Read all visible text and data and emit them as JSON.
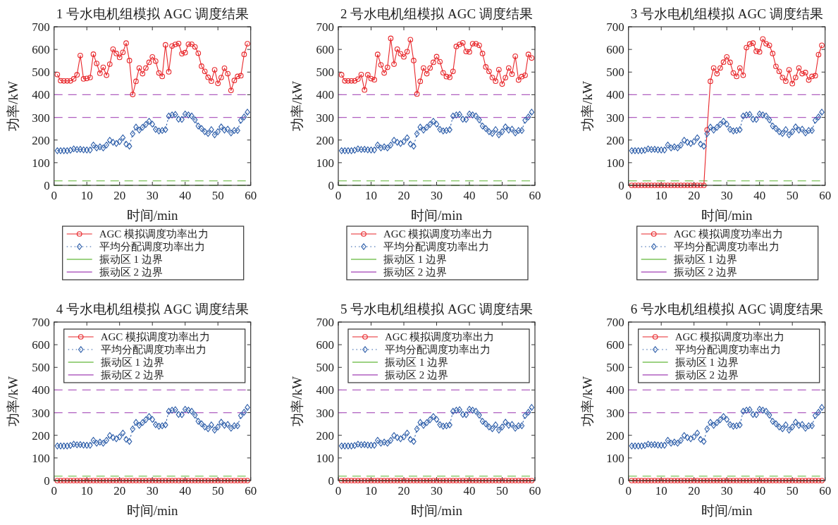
{
  "chart_data": [
    {
      "type": "line",
      "title": "1 号水电机组模拟 AGC 调度结果",
      "xlabel": "时间/min",
      "ylabel": "功率/kW",
      "xlim": [
        0,
        60
      ],
      "xticks": [
        0,
        10,
        20,
        30,
        40,
        50,
        60
      ],
      "ylim": [
        0,
        700
      ],
      "yticks": [
        0,
        100,
        200,
        300,
        400,
        500,
        600,
        700
      ],
      "legend": "bottom",
      "x": [
        1,
        2,
        3,
        4,
        5,
        6,
        7,
        8,
        9,
        10,
        11,
        12,
        13,
        14,
        15,
        16,
        17,
        18,
        19,
        20,
        21,
        22,
        23,
        24,
        25,
        26,
        27,
        28,
        29,
        30,
        31,
        32,
        33,
        34,
        35,
        36,
        37,
        38,
        39,
        40,
        41,
        42,
        43,
        44,
        45,
        46,
        47,
        48,
        49,
        50,
        51,
        52,
        53,
        54,
        55,
        56,
        57,
        58,
        59
      ],
      "series": [
        {
          "name": "AGC 模拟调度功率出力",
          "color": "#e8262a",
          "marker": "circle",
          "line_style": "solid",
          "values": [
            489,
            462,
            461,
            461,
            461,
            470,
            488,
            573,
            470,
            472,
            476,
            579,
            538,
            495,
            521,
            486,
            535,
            601,
            582,
            565,
            587,
            628,
            551,
            401,
            459,
            518,
            493,
            518,
            543,
            567,
            548,
            496,
            481,
            620,
            501,
            615,
            622,
            626,
            581,
            586,
            623,
            623,
            611,
            583,
            526,
            503,
            477,
            460,
            510,
            450,
            476,
            517,
            493,
            419,
            463,
            481,
            484,
            578,
            625
          ]
        },
        {
          "name": "平均分配调度功率出力",
          "color": "#2b5ca8",
          "marker": "diamond",
          "line_style": "dotted",
          "values": [
            153,
            153,
            153,
            153,
            155,
            161,
            158,
            159,
            157,
            156,
            156,
            178,
            165,
            170,
            165,
            178,
            199,
            190,
            185,
            193,
            210,
            182,
            173,
            228,
            257,
            244,
            256,
            269,
            283,
            270,
            247,
            240,
            242,
            246,
            306,
            311,
            313,
            292,
            291,
            315,
            311,
            306,
            289,
            262,
            251,
            237,
            229,
            246,
            223,
            237,
            258,
            244,
            248,
            231,
            242,
            242,
            287,
            302,
            323
          ]
        }
      ],
      "ref_lines": [
        {
          "axis": "y",
          "value": 0,
          "color": "#7cc35a",
          "line_style": "dashed"
        },
        {
          "axis": "y",
          "value": 20,
          "label": "振动区 1 边界",
          "color": "#7cc35a",
          "line_style": "dashed"
        },
        {
          "axis": "y",
          "value": 300,
          "label": "振动区 2 边界",
          "color": "#b05fc0",
          "line_style": "dashed"
        },
        {
          "axis": "y",
          "value": 400,
          "color": "#b05fc0",
          "line_style": "dashed"
        }
      ]
    },
    {
      "type": "line",
      "title": "2 号水电机组模拟 AGC 调度结果",
      "xlabel": "时间/min",
      "ylabel": "功率/kW",
      "xlim": [
        0,
        60
      ],
      "xticks": [
        0,
        10,
        20,
        30,
        40,
        50,
        60
      ],
      "ylim": [
        0,
        700
      ],
      "yticks": [
        0,
        100,
        200,
        300,
        400,
        500,
        600,
        700
      ],
      "legend": "bottom",
      "x": [
        1,
        2,
        3,
        4,
        5,
        6,
        7,
        8,
        9,
        10,
        11,
        12,
        13,
        14,
        15,
        16,
        17,
        18,
        19,
        20,
        21,
        22,
        23,
        24,
        25,
        26,
        27,
        28,
        29,
        30,
        31,
        32,
        33,
        34,
        35,
        36,
        37,
        38,
        39,
        40,
        41,
        42,
        43,
        44,
        45,
        46,
        47,
        48,
        49,
        50,
        51,
        52,
        53,
        54,
        55,
        56,
        57,
        58,
        59
      ],
      "series": [
        {
          "name": "AGC 模拟调度功率出力",
          "color": "#e8262a",
          "marker": "circle",
          "line_style": "solid",
          "values": [
            488,
            461,
            461,
            461,
            461,
            469,
            489,
            421,
            488,
            471,
            466,
            578,
            532,
            496,
            521,
            649,
            535,
            601,
            581,
            567,
            590,
            643,
            551,
            403,
            459,
            518,
            493,
            518,
            543,
            568,
            546,
            497,
            480,
            477,
            503,
            613,
            622,
            629,
            591,
            589,
            625,
            625,
            618,
            582,
            523,
            503,
            476,
            460,
            511,
            447,
            475,
            518,
            491,
            570,
            465,
            480,
            486,
            578,
            562
          ]
        },
        {
          "name": "平均分配调度功率出力",
          "color": "#2b5ca8",
          "marker": "diamond",
          "line_style": "dotted",
          "values": [
            153,
            153,
            153,
            153,
            155,
            161,
            158,
            159,
            157,
            156,
            156,
            178,
            165,
            170,
            165,
            178,
            199,
            190,
            185,
            193,
            210,
            182,
            173,
            228,
            257,
            244,
            256,
            269,
            283,
            270,
            247,
            240,
            242,
            246,
            306,
            311,
            313,
            292,
            291,
            315,
            311,
            306,
            289,
            262,
            251,
            237,
            229,
            246,
            223,
            237,
            258,
            244,
            248,
            231,
            242,
            242,
            287,
            302,
            323
          ]
        }
      ],
      "ref_lines": [
        {
          "axis": "y",
          "value": 0,
          "color": "#7cc35a",
          "line_style": "dashed"
        },
        {
          "axis": "y",
          "value": 20,
          "label": "振动区 1 边界",
          "color": "#7cc35a",
          "line_style": "dashed"
        },
        {
          "axis": "y",
          "value": 300,
          "label": "振动区 2 边界",
          "color": "#b05fc0",
          "line_style": "dashed"
        },
        {
          "axis": "y",
          "value": 400,
          "color": "#b05fc0",
          "line_style": "dashed"
        }
      ]
    },
    {
      "type": "line",
      "title": "3 号水电机组模拟 AGC 调度结果",
      "xlabel": "时间/min",
      "ylabel": "功率/kW",
      "xlim": [
        0,
        60
      ],
      "xticks": [
        0,
        10,
        20,
        30,
        40,
        50,
        60
      ],
      "ylim": [
        0,
        700
      ],
      "yticks": [
        0,
        100,
        200,
        300,
        400,
        500,
        600,
        700
      ],
      "legend": "bottom",
      "x": [
        1,
        2,
        3,
        4,
        5,
        6,
        7,
        8,
        9,
        10,
        11,
        12,
        13,
        14,
        15,
        16,
        17,
        18,
        19,
        20,
        21,
        22,
        23,
        24,
        25,
        26,
        27,
        28,
        29,
        30,
        31,
        32,
        33,
        34,
        35,
        36,
        37,
        38,
        39,
        40,
        41,
        42,
        43,
        44,
        45,
        46,
        47,
        48,
        49,
        50,
        51,
        52,
        53,
        54,
        55,
        56,
        57,
        58,
        59
      ],
      "series": [
        {
          "name": "AGC 模拟调度功率出力",
          "color": "#e8262a",
          "marker": "circle",
          "line_style": "solid",
          "values": [
            0,
            0,
            0,
            0,
            0,
            0,
            0,
            0,
            0,
            0,
            0,
            0,
            0,
            0,
            0,
            0,
            0,
            0,
            0,
            0,
            0,
            0,
            0,
            245,
            459,
            518,
            493,
            518,
            544,
            567,
            543,
            496,
            481,
            518,
            486,
            608,
            624,
            628,
            592,
            589,
            646,
            625,
            618,
            582,
            525,
            503,
            476,
            460,
            510,
            449,
            476,
            518,
            493,
            498,
            465,
            481,
            484,
            577,
            618
          ]
        },
        {
          "name": "平均分配调度功率出力",
          "color": "#2b5ca8",
          "marker": "diamond",
          "line_style": "dotted",
          "values": [
            153,
            153,
            153,
            153,
            155,
            161,
            158,
            159,
            157,
            156,
            156,
            178,
            165,
            170,
            165,
            178,
            199,
            190,
            185,
            193,
            210,
            182,
            173,
            228,
            257,
            244,
            256,
            269,
            283,
            270,
            247,
            240,
            242,
            246,
            306,
            311,
            313,
            292,
            291,
            315,
            311,
            306,
            289,
            262,
            251,
            237,
            229,
            246,
            223,
            237,
            258,
            244,
            248,
            231,
            242,
            242,
            287,
            302,
            323
          ]
        }
      ],
      "ref_lines": [
        {
          "axis": "y",
          "value": 0,
          "color": "#7cc35a",
          "line_style": "dashed"
        },
        {
          "axis": "y",
          "value": 20,
          "label": "振动区 1 边界",
          "color": "#7cc35a",
          "line_style": "dashed"
        },
        {
          "axis": "y",
          "value": 300,
          "label": "振动区 2 边界",
          "color": "#b05fc0",
          "line_style": "dashed"
        },
        {
          "axis": "y",
          "value": 400,
          "color": "#b05fc0",
          "line_style": "dashed"
        }
      ]
    },
    {
      "type": "line",
      "title": "4 号水电机组模拟 AGC 调度结果",
      "xlabel": "时间/min",
      "ylabel": "功率/kW",
      "xlim": [
        0,
        60
      ],
      "xticks": [
        0,
        10,
        20,
        30,
        40,
        50,
        60
      ],
      "ylim": [
        0,
        700
      ],
      "yticks": [
        0,
        100,
        200,
        300,
        400,
        500,
        600,
        700
      ],
      "legend": "top",
      "x": [
        1,
        2,
        3,
        4,
        5,
        6,
        7,
        8,
        9,
        10,
        11,
        12,
        13,
        14,
        15,
        16,
        17,
        18,
        19,
        20,
        21,
        22,
        23,
        24,
        25,
        26,
        27,
        28,
        29,
        30,
        31,
        32,
        33,
        34,
        35,
        36,
        37,
        38,
        39,
        40,
        41,
        42,
        43,
        44,
        45,
        46,
        47,
        48,
        49,
        50,
        51,
        52,
        53,
        54,
        55,
        56,
        57,
        58,
        59
      ],
      "series": [
        {
          "name": "AGC 模拟调度功率出力",
          "color": "#e8262a",
          "marker": "circle",
          "line_style": "solid",
          "values": [
            0,
            0,
            0,
            0,
            0,
            0,
            0,
            0,
            0,
            0,
            0,
            0,
            0,
            0,
            0,
            0,
            0,
            0,
            0,
            0,
            0,
            0,
            0,
            0,
            0,
            0,
            0,
            0,
            0,
            0,
            0,
            0,
            0,
            0,
            0,
            0,
            0,
            0,
            0,
            0,
            0,
            0,
            0,
            0,
            0,
            0,
            0,
            0,
            0,
            0,
            0,
            0,
            0,
            0,
            0,
            0,
            0,
            0,
            0
          ]
        },
        {
          "name": "平均分配调度功率出力",
          "color": "#2b5ca8",
          "marker": "diamond",
          "line_style": "dotted",
          "values": [
            153,
            153,
            153,
            153,
            155,
            161,
            158,
            159,
            157,
            156,
            156,
            178,
            165,
            170,
            165,
            178,
            199,
            190,
            185,
            193,
            210,
            182,
            173,
            228,
            257,
            244,
            256,
            269,
            283,
            270,
            247,
            240,
            242,
            246,
            306,
            311,
            313,
            292,
            291,
            315,
            311,
            306,
            289,
            262,
            251,
            237,
            229,
            246,
            223,
            237,
            258,
            244,
            248,
            231,
            242,
            242,
            287,
            302,
            323
          ]
        }
      ],
      "ref_lines": [
        {
          "axis": "y",
          "value": 0,
          "color": "#7cc35a",
          "line_style": "dashed"
        },
        {
          "axis": "y",
          "value": 20,
          "label": "振动区 1 边界",
          "color": "#7cc35a",
          "line_style": "dashed"
        },
        {
          "axis": "y",
          "value": 300,
          "label": "振动区 2 边界",
          "color": "#b05fc0",
          "line_style": "dashed"
        },
        {
          "axis": "y",
          "value": 400,
          "color": "#b05fc0",
          "line_style": "dashed"
        }
      ]
    },
    {
      "type": "line",
      "title": "5 号水电机组模拟 AGC 调度结果",
      "xlabel": "时间/min",
      "ylabel": "功率/kW",
      "xlim": [
        0,
        60
      ],
      "xticks": [
        0,
        10,
        20,
        30,
        40,
        50,
        60
      ],
      "ylim": [
        0,
        700
      ],
      "yticks": [
        0,
        100,
        200,
        300,
        400,
        500,
        600,
        700
      ],
      "legend": "top",
      "x": [
        1,
        2,
        3,
        4,
        5,
        6,
        7,
        8,
        9,
        10,
        11,
        12,
        13,
        14,
        15,
        16,
        17,
        18,
        19,
        20,
        21,
        22,
        23,
        24,
        25,
        26,
        27,
        28,
        29,
        30,
        31,
        32,
        33,
        34,
        35,
        36,
        37,
        38,
        39,
        40,
        41,
        42,
        43,
        44,
        45,
        46,
        47,
        48,
        49,
        50,
        51,
        52,
        53,
        54,
        55,
        56,
        57,
        58,
        59
      ],
      "series": [
        {
          "name": "AGC 模拟调度功率出力",
          "color": "#e8262a",
          "marker": "circle",
          "line_style": "solid",
          "values": [
            0,
            0,
            0,
            0,
            0,
            0,
            0,
            0,
            0,
            0,
            0,
            0,
            0,
            0,
            0,
            0,
            0,
            0,
            0,
            0,
            0,
            0,
            0,
            0,
            0,
            0,
            0,
            0,
            0,
            0,
            0,
            0,
            0,
            0,
            0,
            0,
            0,
            0,
            0,
            0,
            0,
            0,
            0,
            0,
            0,
            0,
            0,
            0,
            0,
            0,
            0,
            0,
            0,
            0,
            0,
            0,
            0,
            0,
            0
          ]
        },
        {
          "name": "平均分配调度功率出力",
          "color": "#2b5ca8",
          "marker": "diamond",
          "line_style": "dotted",
          "values": [
            153,
            153,
            153,
            153,
            155,
            161,
            158,
            159,
            157,
            156,
            156,
            178,
            165,
            170,
            165,
            178,
            199,
            190,
            185,
            193,
            210,
            182,
            173,
            228,
            257,
            244,
            256,
            269,
            283,
            270,
            247,
            240,
            242,
            246,
            306,
            311,
            313,
            292,
            291,
            315,
            311,
            306,
            289,
            262,
            251,
            237,
            229,
            246,
            223,
            237,
            258,
            244,
            248,
            231,
            242,
            242,
            287,
            302,
            323
          ]
        }
      ],
      "ref_lines": [
        {
          "axis": "y",
          "value": 0,
          "color": "#7cc35a",
          "line_style": "dashed"
        },
        {
          "axis": "y",
          "value": 20,
          "label": "振动区 1 边界",
          "color": "#7cc35a",
          "line_style": "dashed"
        },
        {
          "axis": "y",
          "value": 300,
          "label": "振动区 2 边界",
          "color": "#b05fc0",
          "line_style": "dashed"
        },
        {
          "axis": "y",
          "value": 400,
          "color": "#b05fc0",
          "line_style": "dashed"
        }
      ]
    },
    {
      "type": "line",
      "title": "6 号水电机组模拟 AGC 调度结果",
      "xlabel": "时间/min",
      "ylabel": "功率/kW",
      "xlim": [
        0,
        60
      ],
      "xticks": [
        0,
        10,
        20,
        30,
        40,
        50,
        60
      ],
      "ylim": [
        0,
        700
      ],
      "yticks": [
        0,
        100,
        200,
        300,
        400,
        500,
        600,
        700
      ],
      "legend": "top",
      "x": [
        1,
        2,
        3,
        4,
        5,
        6,
        7,
        8,
        9,
        10,
        11,
        12,
        13,
        14,
        15,
        16,
        17,
        18,
        19,
        20,
        21,
        22,
        23,
        24,
        25,
        26,
        27,
        28,
        29,
        30,
        31,
        32,
        33,
        34,
        35,
        36,
        37,
        38,
        39,
        40,
        41,
        42,
        43,
        44,
        45,
        46,
        47,
        48,
        49,
        50,
        51,
        52,
        53,
        54,
        55,
        56,
        57,
        58,
        59
      ],
      "series": [
        {
          "name": "AGC 模拟调度功率出力",
          "color": "#e8262a",
          "marker": "circle",
          "line_style": "solid",
          "values": [
            0,
            0,
            0,
            0,
            0,
            0,
            0,
            0,
            0,
            0,
            0,
            0,
            0,
            0,
            0,
            0,
            0,
            0,
            0,
            0,
            0,
            0,
            0,
            0,
            0,
            0,
            0,
            0,
            0,
            0,
            0,
            0,
            0,
            0,
            0,
            0,
            0,
            0,
            0,
            0,
            0,
            0,
            0,
            0,
            0,
            0,
            0,
            0,
            0,
            0,
            0,
            0,
            0,
            0,
            0,
            0,
            0,
            0,
            0
          ]
        },
        {
          "name": "平均分配调度功率出力",
          "color": "#2b5ca8",
          "marker": "diamond",
          "line_style": "dotted",
          "values": [
            153,
            153,
            153,
            153,
            155,
            161,
            158,
            159,
            157,
            156,
            156,
            178,
            165,
            170,
            165,
            178,
            199,
            190,
            185,
            193,
            210,
            182,
            173,
            228,
            257,
            244,
            256,
            269,
            283,
            270,
            247,
            240,
            242,
            246,
            306,
            311,
            313,
            292,
            291,
            315,
            311,
            306,
            289,
            262,
            251,
            237,
            229,
            246,
            223,
            237,
            258,
            244,
            248,
            231,
            242,
            242,
            287,
            302,
            323
          ]
        }
      ],
      "ref_lines": [
        {
          "axis": "y",
          "value": 0,
          "color": "#7cc35a",
          "line_style": "dashed"
        },
        {
          "axis": "y",
          "value": 20,
          "label": "振动区 1 边界",
          "color": "#7cc35a",
          "line_style": "dashed"
        },
        {
          "axis": "y",
          "value": 300,
          "label": "振动区 2 边界",
          "color": "#b05fc0",
          "line_style": "dashed"
        },
        {
          "axis": "y",
          "value": 400,
          "color": "#b05fc0",
          "line_style": "dashed"
        }
      ]
    }
  ]
}
